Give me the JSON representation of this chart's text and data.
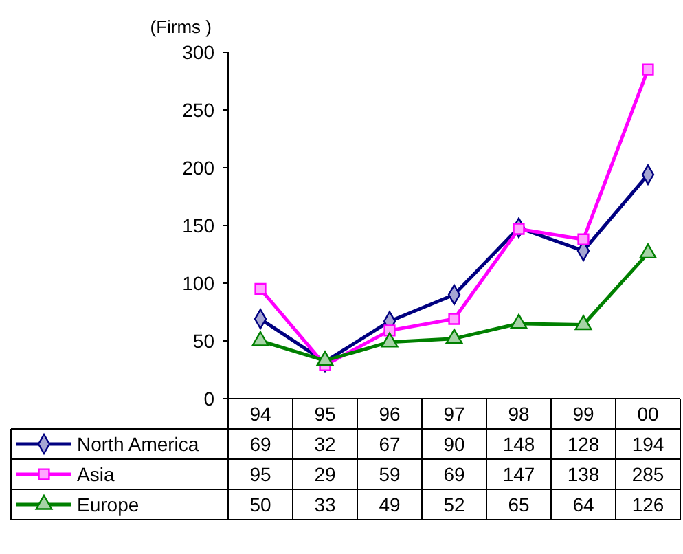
{
  "chart_data": {
    "type": "line",
    "ylabel": "(Firms )",
    "categories": [
      "94",
      "95",
      "96",
      "97",
      "98",
      "99",
      "00"
    ],
    "ylim": [
      0,
      300
    ],
    "yticks": [
      0,
      50,
      100,
      150,
      200,
      250,
      300
    ],
    "grid": false,
    "legend": "bottom",
    "data_labels": true,
    "line_style": "solid",
    "series": [
      {
        "name": "North America",
        "color": "#000080",
        "marker": "diamond",
        "values": [
          69,
          32,
          67,
          90,
          148,
          128,
          194
        ]
      },
      {
        "name": "Asia",
        "color": "#ff00ff",
        "marker": "square",
        "values": [
          95,
          29,
          59,
          69,
          147,
          138,
          285
        ]
      },
      {
        "name": "Europe",
        "color": "#008000",
        "marker": "triangle",
        "values": [
          50,
          33,
          49,
          52,
          65,
          64,
          126
        ]
      }
    ]
  }
}
